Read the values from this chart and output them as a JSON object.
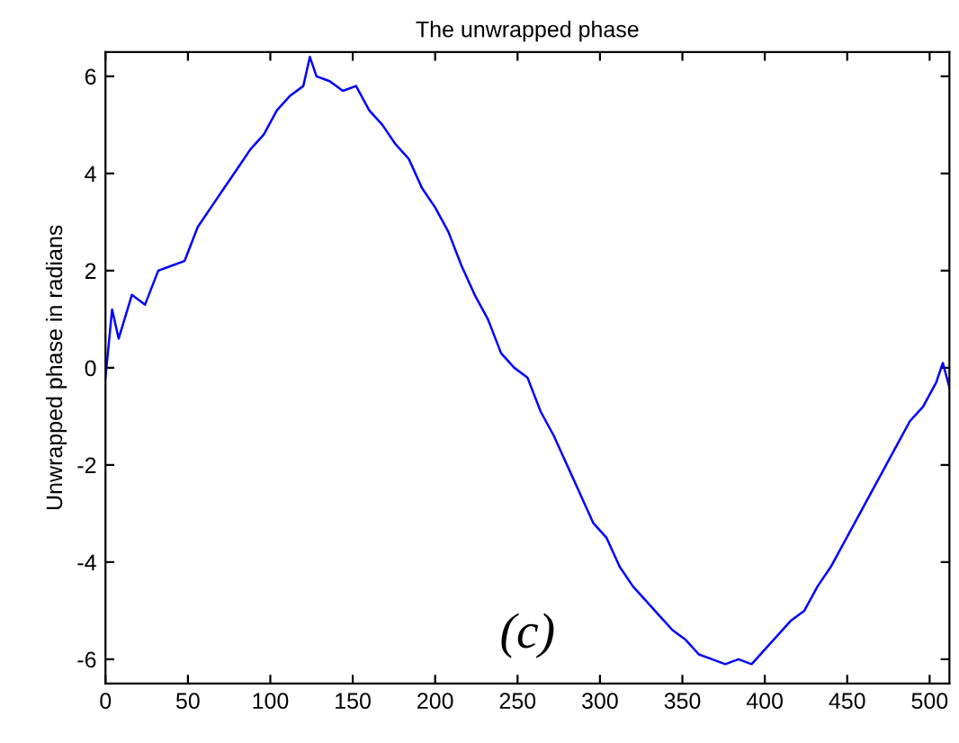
{
  "chart_data": {
    "type": "line",
    "title": "The unwrapped phase",
    "ylabel": "Unwrapped phase in radians",
    "annotations": [
      "(c)"
    ],
    "x": [
      0,
      4,
      8,
      16,
      24,
      32,
      40,
      48,
      56,
      64,
      72,
      80,
      88,
      96,
      104,
      112,
      120,
      124,
      128,
      136,
      144,
      152,
      160,
      168,
      176,
      184,
      192,
      200,
      208,
      216,
      224,
      232,
      240,
      248,
      256,
      264,
      272,
      280,
      288,
      296,
      304,
      312,
      320,
      328,
      336,
      344,
      352,
      360,
      368,
      376,
      384,
      392,
      400,
      408,
      416,
      424,
      432,
      440,
      448,
      456,
      464,
      472,
      480,
      488,
      496,
      504,
      508,
      512
    ],
    "series": [
      {
        "color": "#0000ff",
        "values": [
          -0.2,
          1.2,
          0.6,
          1.5,
          1.3,
          2.0,
          2.1,
          2.2,
          2.9,
          3.3,
          3.7,
          4.1,
          4.5,
          4.8,
          5.3,
          5.6,
          5.8,
          6.4,
          6.0,
          5.9,
          5.7,
          5.8,
          5.3,
          5.0,
          4.6,
          4.3,
          3.7,
          3.3,
          2.8,
          2.1,
          1.5,
          1.0,
          0.3,
          0.0,
          -0.2,
          -0.9,
          -1.4,
          -2.0,
          -2.6,
          -3.2,
          -3.5,
          -4.1,
          -4.5,
          -4.8,
          -5.1,
          -5.4,
          -5.6,
          -5.9,
          -6.0,
          -6.1,
          -6.0,
          -6.1,
          -5.8,
          -5.5,
          -5.2,
          -5.0,
          -4.5,
          -4.1,
          -3.6,
          -3.1,
          -2.6,
          -2.1,
          -1.6,
          -1.1,
          -0.8,
          -0.3,
          0.1,
          -0.4
        ]
      }
    ],
    "xlim": [
      0,
      512
    ],
    "ylim": [
      -6.5,
      6.5
    ],
    "xticks": [
      0,
      50,
      100,
      150,
      200,
      250,
      300,
      350,
      400,
      450,
      500
    ],
    "yticks": [
      -6,
      -4,
      -2,
      0,
      2,
      4,
      6
    ],
    "grid": false,
    "legend": false,
    "marker": "none",
    "line_style": "solid"
  }
}
